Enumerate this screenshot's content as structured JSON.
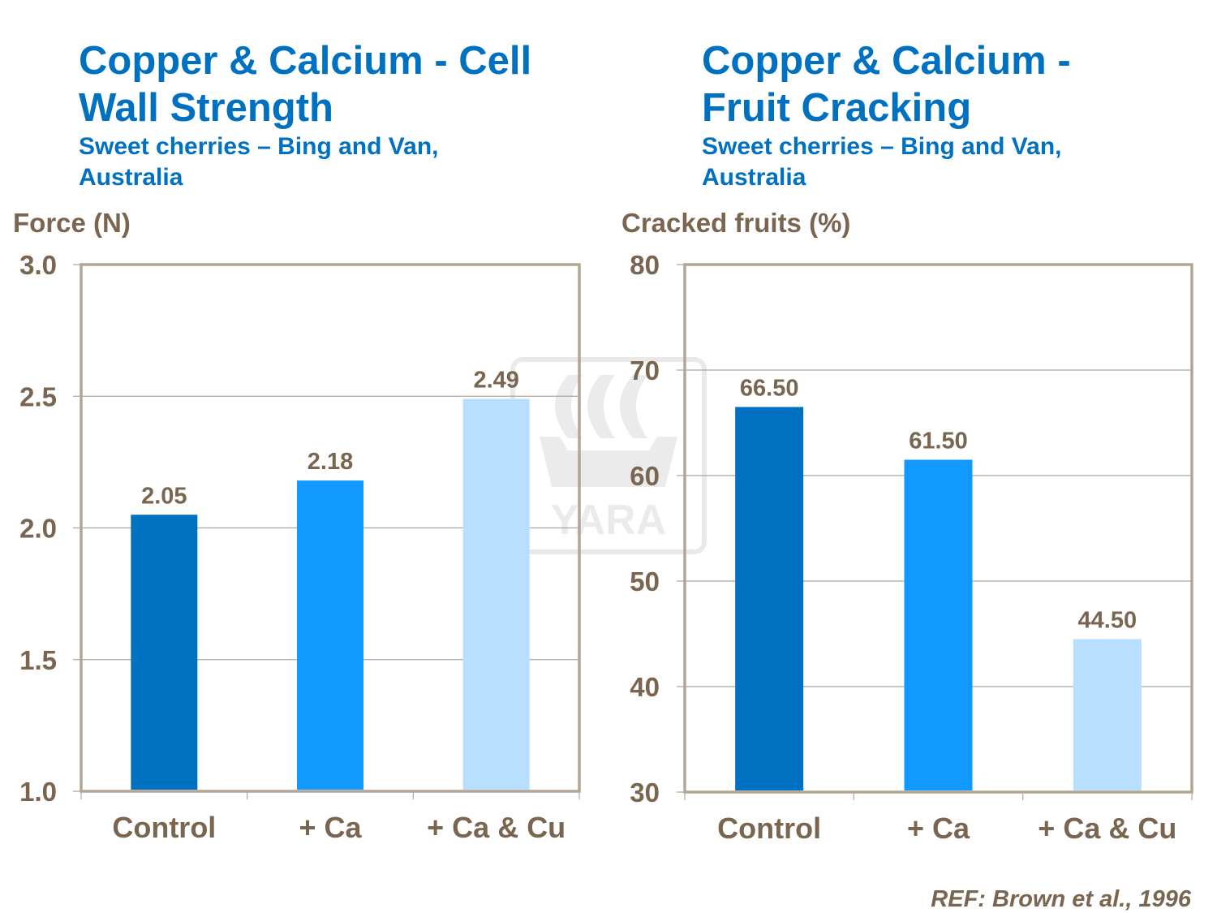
{
  "colors": {
    "text": "#7a6650",
    "title": "#0070c0",
    "axis": "#b3a596",
    "series": [
      "#0070c0",
      "#1199ff",
      "#b8dfff"
    ]
  },
  "watermark": {
    "text": "YARA"
  },
  "reference": "REF: Brown et al., 1996",
  "chart_data": [
    {
      "type": "bar",
      "title": "Copper & Calcium - Cell Wall Strength",
      "subtitle": "Sweet cherries – Bing and Van, Australia",
      "ylabel": "Force (N)",
      "categories": [
        "Control",
        "+ Ca",
        "+ Ca & Cu"
      ],
      "values": [
        2.05,
        2.18,
        2.49
      ],
      "data_labels": [
        "2.05",
        "2.18",
        "2.49"
      ],
      "ylim": [
        1.0,
        3.0
      ],
      "yticks": [
        "1.0",
        "1.5",
        "2.0",
        "2.5",
        "3.0"
      ],
      "grid": true
    },
    {
      "type": "bar",
      "title": "Copper & Calcium - Fruit Cracking",
      "subtitle": "Sweet cherries – Bing and Van, Australia",
      "ylabel": "Cracked fruits (%)",
      "categories": [
        "Control",
        "+ Ca",
        "+ Ca & Cu"
      ],
      "values": [
        66.5,
        61.5,
        44.5
      ],
      "data_labels": [
        "66.50",
        "61.50",
        "44.50"
      ],
      "ylim": [
        30,
        80
      ],
      "yticks": [
        "30",
        "40",
        "50",
        "60",
        "70",
        "80"
      ],
      "grid": true
    }
  ]
}
